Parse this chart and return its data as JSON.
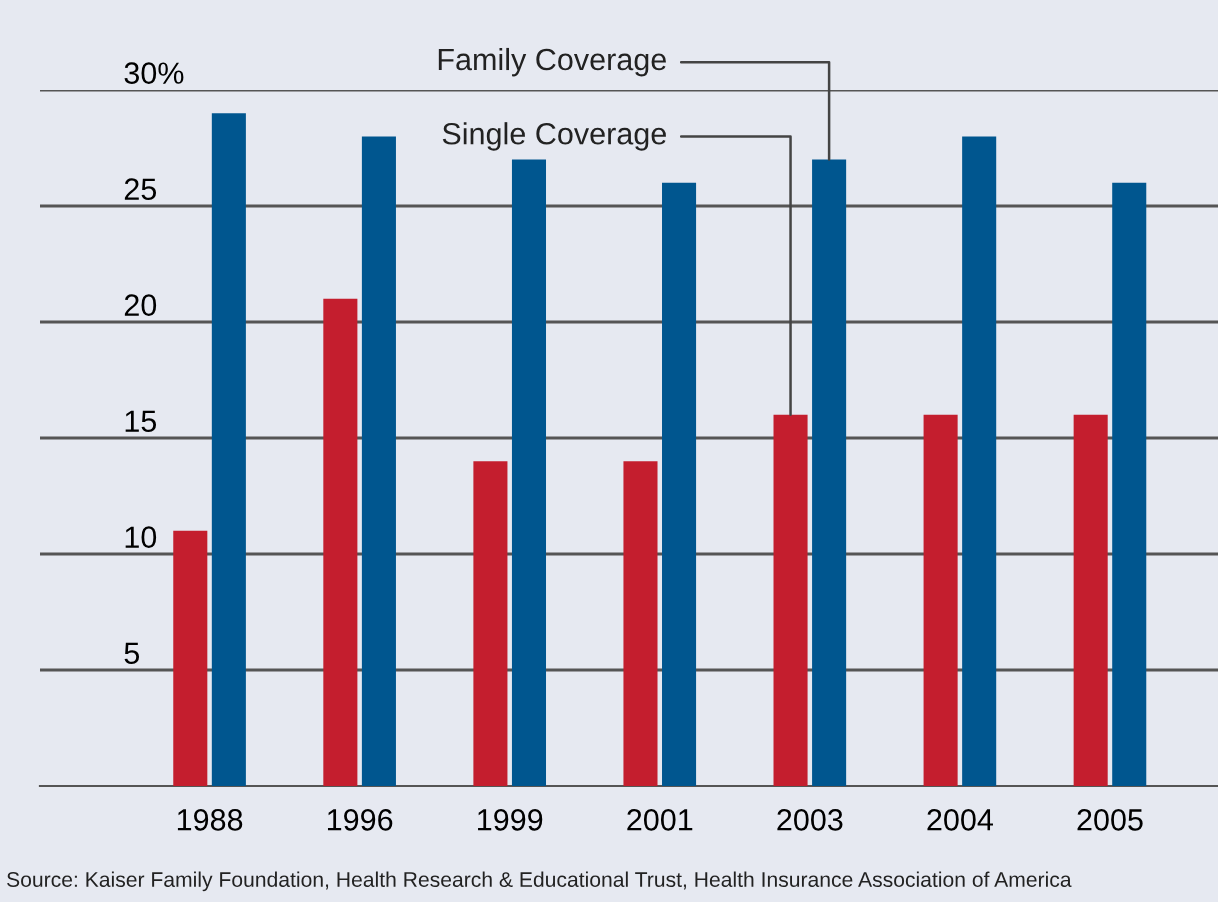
{
  "chart_data": {
    "type": "bar",
    "categories": [
      "1988",
      "1996",
      "1999",
      "2001",
      "2003",
      "2004",
      "2005"
    ],
    "series": [
      {
        "name": "Single Coverage",
        "color": "#c41e2e",
        "values": [
          11,
          21,
          14,
          14,
          16,
          16,
          16
        ]
      },
      {
        "name": "Family Coverage",
        "color": "#00568f",
        "values": [
          29,
          28,
          27,
          26,
          27,
          28,
          26
        ]
      }
    ],
    "ylim": [
      0,
      30
    ],
    "yticks": [
      5,
      10,
      15,
      20,
      25,
      {
        "value": 30,
        "label": "30%"
      }
    ],
    "grid": "y",
    "legend": false,
    "annotations": [
      {
        "text": "Source: Kaiser Family Foundation, Health Research & Educational Trust, Health Insurance Association of America"
      }
    ]
  }
}
